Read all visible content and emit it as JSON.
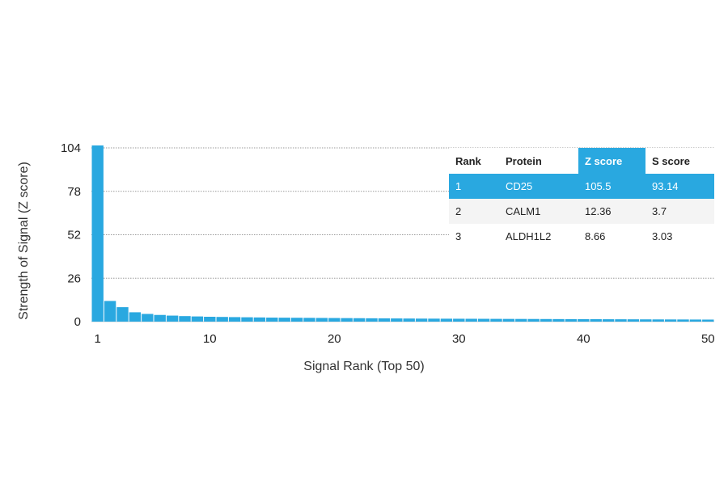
{
  "chart_data": {
    "type": "bar",
    "title": "",
    "xlabel": "Signal Rank (Top 50)",
    "ylabel": "Strength of Signal (Z score)",
    "ylim": [
      0,
      104
    ],
    "xlim": [
      1,
      50
    ],
    "yticks": [
      0,
      26,
      52,
      78,
      104
    ],
    "xticks": [
      1,
      10,
      20,
      30,
      40,
      50
    ],
    "grid": "horizontal-dotted",
    "bar_color": "#29a8e0",
    "x": [
      1,
      2,
      3,
      4,
      5,
      6,
      7,
      8,
      9,
      10,
      11,
      12,
      13,
      14,
      15,
      16,
      17,
      18,
      19,
      20,
      21,
      22,
      23,
      24,
      25,
      26,
      27,
      28,
      29,
      30,
      31,
      32,
      33,
      34,
      35,
      36,
      37,
      38,
      39,
      40,
      41,
      42,
      43,
      44,
      45,
      46,
      47,
      48,
      49,
      50
    ],
    "values": [
      105.5,
      12.36,
      8.66,
      5.6,
      4.6,
      4.0,
      3.6,
      3.3,
      3.1,
      2.9,
      2.8,
      2.7,
      2.6,
      2.5,
      2.4,
      2.35,
      2.3,
      2.25,
      2.2,
      2.15,
      2.1,
      2.05,
      2.0,
      1.95,
      1.9,
      1.85,
      1.8,
      1.78,
      1.75,
      1.72,
      1.7,
      1.68,
      1.65,
      1.62,
      1.6,
      1.58,
      1.55,
      1.52,
      1.5,
      1.48,
      1.45,
      1.42,
      1.4,
      1.38,
      1.35,
      1.32,
      1.3,
      1.28,
      1.25,
      1.22
    ]
  },
  "table": {
    "headers": [
      "Rank",
      "Protein",
      "Z score",
      "S score"
    ],
    "highlight_color": "#29a8e0",
    "rows": [
      [
        "1",
        "CD25",
        "105.5",
        "93.14"
      ],
      [
        "2",
        "CALM1",
        "12.36",
        "3.7"
      ],
      [
        "3",
        "ALDH1L2",
        "8.66",
        "3.03"
      ]
    ]
  }
}
